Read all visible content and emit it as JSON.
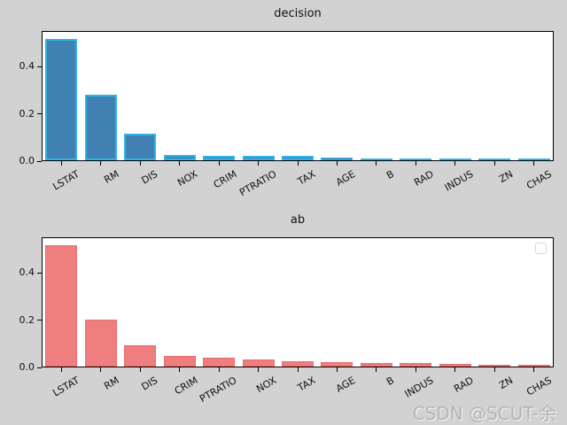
{
  "watermark": {
    "text": "CSDN @SCUT-余"
  },
  "chart_data": [
    {
      "type": "bar",
      "title": "decision",
      "categories": [
        "LSTAT",
        "RM",
        "DIS",
        "NOX",
        "CRIM",
        "PTRATIO",
        "TAX",
        "AGE",
        "B",
        "RAD",
        "INDUS",
        "ZN",
        "CHAS"
      ],
      "values": [
        0.52,
        0.28,
        0.115,
        0.024,
        0.018,
        0.018,
        0.018,
        0.01,
        0.007,
        0.005,
        0.005,
        0.005,
        0.001
      ],
      "xlabel": "",
      "ylabel": "",
      "yticks": [
        0.0,
        0.2,
        0.4
      ],
      "ytick_labels": [
        "0.0",
        "0.2",
        "0.4"
      ],
      "ylim": [
        0,
        0.55
      ],
      "grid": false,
      "legend": "none",
      "bar_color": "#4181b1",
      "bar_edge_color": "#2fb4ea",
      "xtick_rotation_deg": 30
    },
    {
      "type": "bar",
      "title": "ab",
      "categories": [
        "LSTAT",
        "RM",
        "DIS",
        "CRIM",
        "PTRATIO",
        "NOX",
        "TAX",
        "AGE",
        "B",
        "INDUS",
        "RAD",
        "ZN",
        "CHAS"
      ],
      "values": [
        0.52,
        0.2,
        0.09,
        0.046,
        0.038,
        0.032,
        0.024,
        0.019,
        0.016,
        0.014,
        0.01,
        0.002,
        0.001
      ],
      "xlabel": "",
      "ylabel": "",
      "yticks": [
        0.0,
        0.2,
        0.4
      ],
      "ytick_labels": [
        "0.0",
        "0.2",
        "0.4"
      ],
      "ylim": [
        0,
        0.55
      ],
      "grid": false,
      "legend": "empty-box-top-right",
      "bar_color": "#ef7f7f",
      "bar_edge_color": "#ea6b6b",
      "xtick_rotation_deg": 30
    }
  ]
}
